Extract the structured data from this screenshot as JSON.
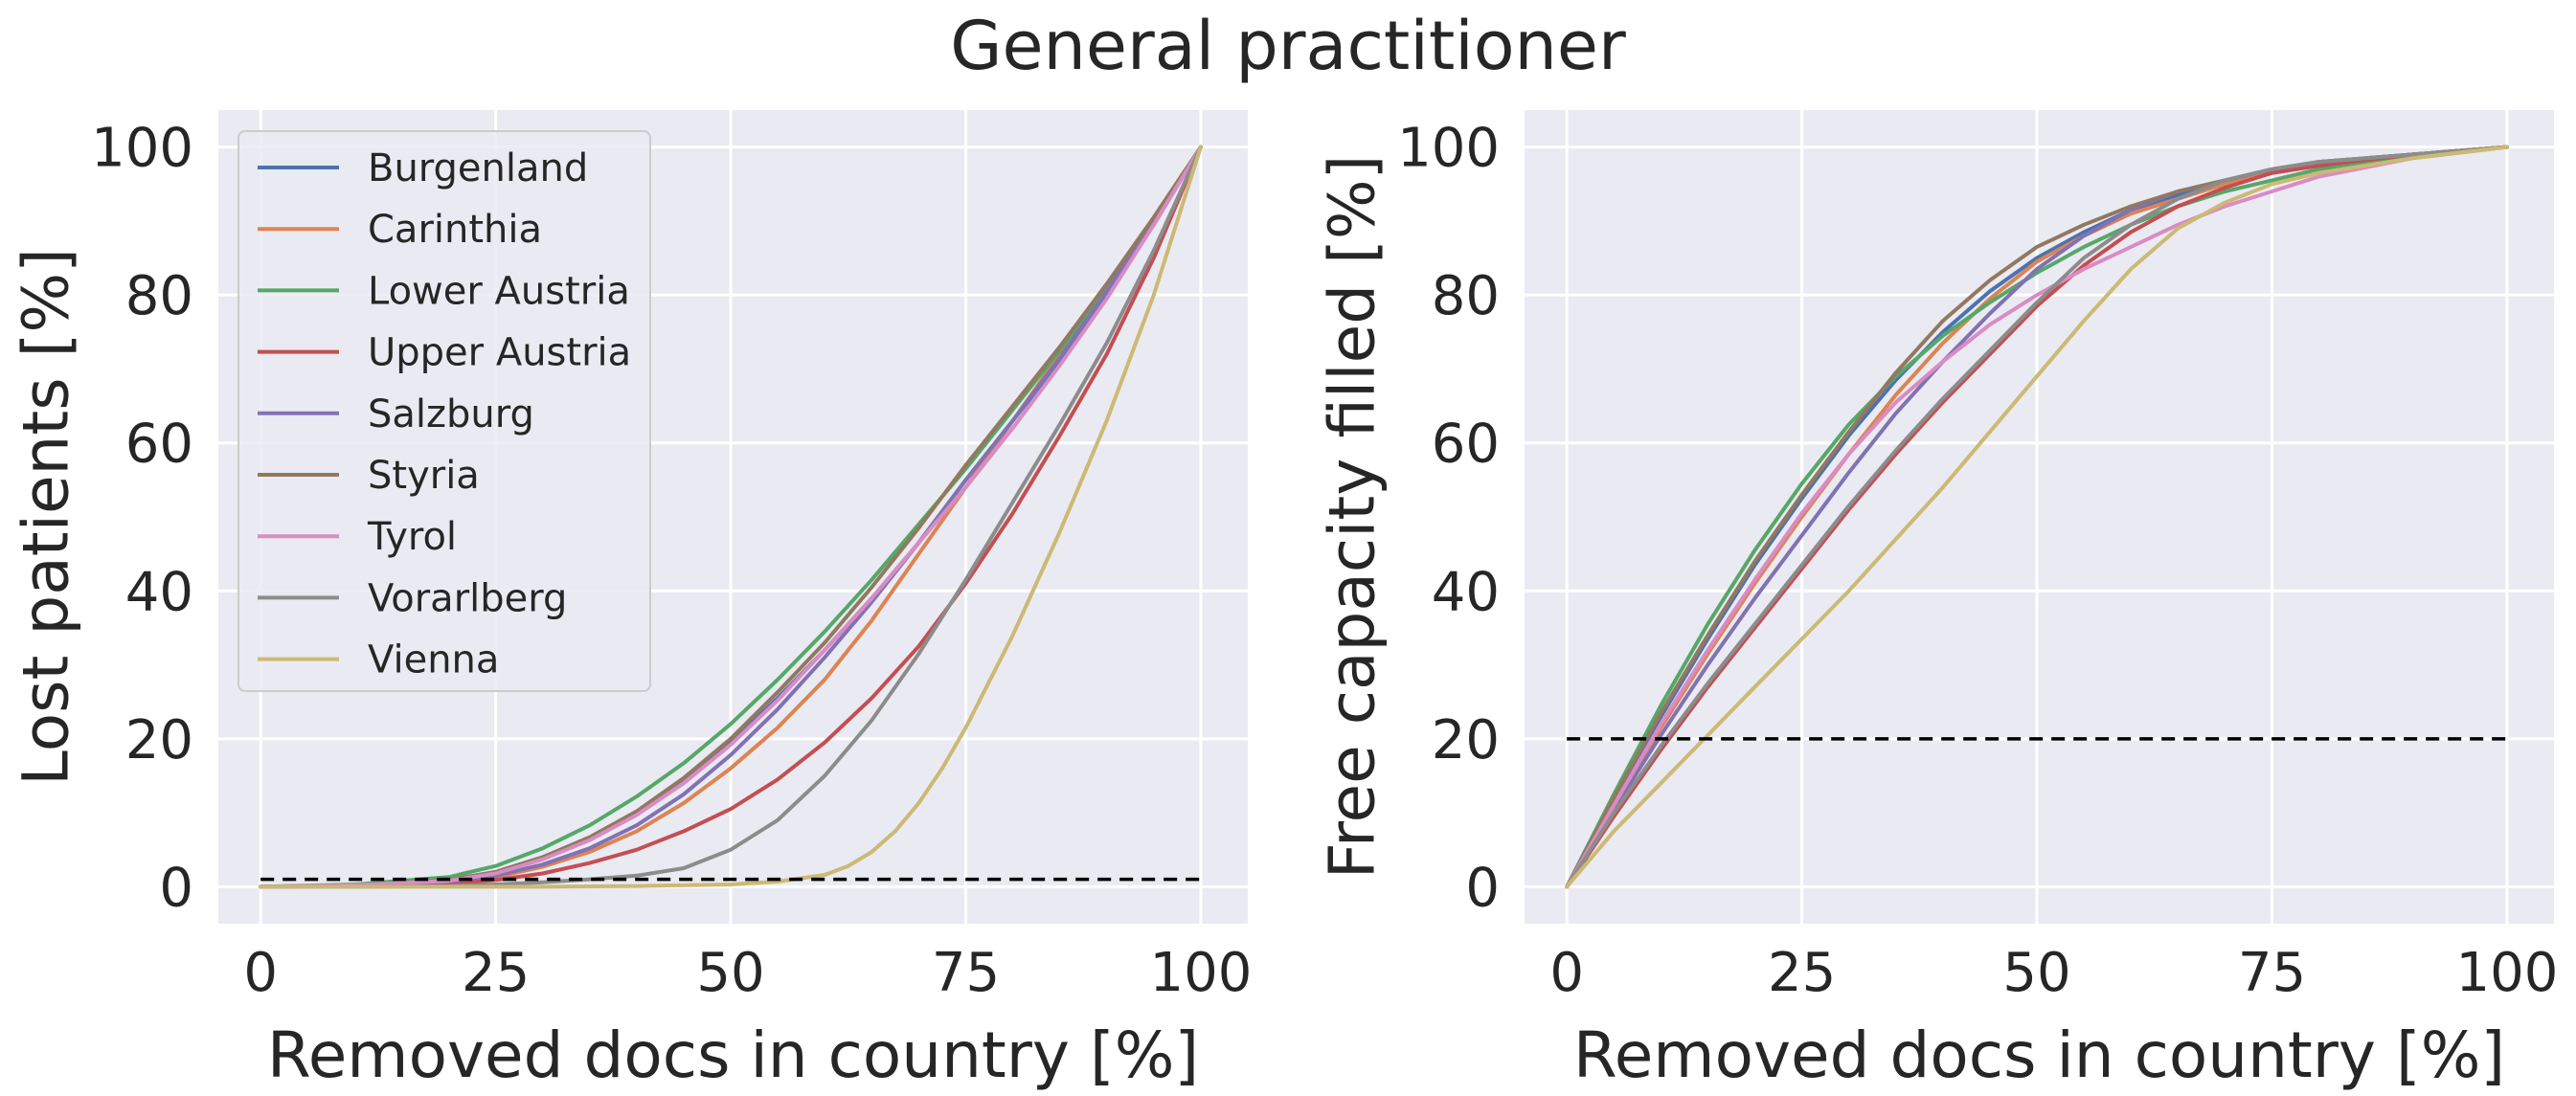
{
  "figure": {
    "title": "General practitioner"
  },
  "chart_data": [
    {
      "type": "line",
      "title": "",
      "xlabel": "Removed docs in country [%]",
      "ylabel": "Lost patients [%]",
      "xlim": [
        -4.5,
        105
      ],
      "ylim": [
        -5,
        105
      ],
      "xticks": [
        0,
        25,
        50,
        75,
        100
      ],
      "yticks": [
        0,
        20,
        40,
        60,
        80,
        100
      ],
      "grid": true,
      "legend_position": "upper-left",
      "threshold": {
        "y": 1,
        "style": "dashed",
        "color": "#000000"
      },
      "series": [
        {
          "name": "Burgenland",
          "color": "#4c72b0",
          "x": [
            0,
            10,
            20,
            25,
            30,
            35,
            40,
            45,
            50,
            55,
            60,
            65,
            70,
            75,
            80,
            85,
            90,
            95,
            100
          ],
          "y": [
            0,
            0.2,
            0.9,
            2,
            4,
            6.5,
            10,
            14.5,
            19.5,
            25.5,
            32,
            39,
            46.5,
            55,
            63,
            71,
            80,
            89.5,
            100
          ]
        },
        {
          "name": "Carinthia",
          "color": "#dd8452",
          "x": [
            0,
            10,
            20,
            25,
            30,
            35,
            40,
            45,
            50,
            55,
            60,
            65,
            70,
            75,
            80,
            85,
            90,
            95,
            100
          ],
          "y": [
            0,
            0.1,
            0.6,
            1.3,
            2.7,
            4.7,
            7.5,
            11.3,
            16,
            21.5,
            28,
            36,
            45,
            54,
            63,
            72,
            81,
            90,
            100
          ]
        },
        {
          "name": "Lower Austria",
          "color": "#55a868",
          "x": [
            0,
            10,
            20,
            25,
            30,
            35,
            40,
            45,
            50,
            55,
            60,
            65,
            70,
            75,
            80,
            85,
            90,
            95,
            100
          ],
          "y": [
            0,
            0.3,
            1.3,
            2.8,
            5.2,
            8.3,
            12.2,
            16.7,
            22,
            28,
            34.5,
            41.5,
            49,
            56.5,
            64.5,
            72.5,
            81,
            90,
            100
          ]
        },
        {
          "name": "Upper Austria",
          "color": "#c44e52",
          "x": [
            0,
            10,
            20,
            25,
            30,
            35,
            40,
            45,
            50,
            55,
            60,
            65,
            70,
            75,
            80,
            85,
            90,
            95,
            100
          ],
          "y": [
            0,
            0.1,
            0.4,
            0.9,
            1.8,
            3.2,
            5,
            7.5,
            10.5,
            14.5,
            19.5,
            25.5,
            32.5,
            41,
            50.5,
            61,
            72,
            85,
            100
          ]
        },
        {
          "name": "Salzburg",
          "color": "#8172b3",
          "x": [
            0,
            10,
            20,
            25,
            30,
            35,
            40,
            45,
            50,
            55,
            60,
            65,
            70,
            75,
            80,
            85,
            90,
            95,
            100
          ],
          "y": [
            0,
            0.1,
            0.7,
            1.5,
            3,
            5.2,
            8.3,
            12.5,
            17.8,
            24,
            31,
            38.5,
            46.5,
            55,
            63,
            71.5,
            80.5,
            90,
            100
          ]
        },
        {
          "name": "Styria",
          "color": "#937860",
          "x": [
            0,
            10,
            20,
            25,
            30,
            35,
            40,
            45,
            50,
            55,
            60,
            65,
            70,
            75,
            80,
            85,
            90,
            95,
            100
          ],
          "y": [
            0,
            0.2,
            0.9,
            2,
            4,
            6.7,
            10.2,
            14.7,
            20,
            26.3,
            33,
            40.5,
            48.5,
            57,
            65,
            73,
            81.5,
            90.5,
            100
          ]
        },
        {
          "name": "Tyrol",
          "color": "#da8bc3",
          "x": [
            0,
            10,
            20,
            25,
            30,
            35,
            40,
            45,
            50,
            55,
            60,
            65,
            70,
            75,
            80,
            85,
            90,
            95,
            100
          ],
          "y": [
            0,
            0.2,
            0.8,
            1.8,
            3.7,
            6.3,
            9.7,
            14,
            19.2,
            25.2,
            32,
            39,
            46.5,
            54,
            62,
            70.5,
            79.5,
            89.5,
            100
          ]
        },
        {
          "name": "Vorarlberg",
          "color": "#8c8c8c",
          "x": [
            0,
            10,
            20,
            25,
            30,
            35,
            40,
            45,
            50,
            55,
            60,
            65,
            70,
            75,
            80,
            85,
            90,
            95,
            100
          ],
          "y": [
            0,
            0,
            0.1,
            0.3,
            0.6,
            1,
            1.5,
            2.5,
            5,
            9,
            15,
            22.5,
            31.5,
            41.5,
            52,
            62.5,
            73.5,
            86,
            100
          ]
        },
        {
          "name": "Vienna",
          "color": "#ccb974",
          "x": [
            0,
            10,
            20,
            30,
            40,
            50,
            55,
            60,
            62.5,
            65,
            67.5,
            70,
            72.5,
            75,
            80,
            85,
            90,
            95,
            100
          ],
          "y": [
            0,
            0,
            0,
            0,
            0.1,
            0.3,
            0.7,
            1.6,
            2.8,
            4.7,
            7.5,
            11.3,
            16,
            21.5,
            34,
            48,
            63,
            80,
            100
          ]
        }
      ]
    },
    {
      "type": "line",
      "title": "",
      "xlabel": "Removed docs in country [%]",
      "ylabel": "Free capacity filled [%]",
      "xlim": [
        -4.5,
        105
      ],
      "ylim": [
        -5,
        105
      ],
      "xticks": [
        0,
        25,
        50,
        75,
        100
      ],
      "yticks": [
        0,
        20,
        40,
        60,
        80,
        100
      ],
      "grid": true,
      "threshold": {
        "y": 20,
        "style": "dashed",
        "color": "#000000"
      },
      "series": [
        {
          "name": "Burgenland",
          "color": "#4c72b0",
          "x": [
            0,
            5,
            10,
            15,
            20,
            25,
            30,
            35,
            40,
            45,
            50,
            55,
            60,
            65,
            70,
            75,
            80,
            90,
            100
          ],
          "y": [
            0,
            12,
            23,
            33.5,
            43.5,
            52.5,
            61,
            68.5,
            75,
            80.5,
            85,
            88.5,
            91.5,
            93.5,
            95,
            96.5,
            97.5,
            99,
            100
          ]
        },
        {
          "name": "Carinthia",
          "color": "#dd8452",
          "x": [
            0,
            5,
            10,
            15,
            20,
            25,
            30,
            35,
            40,
            45,
            50,
            55,
            60,
            65,
            70,
            75,
            80,
            90,
            100
          ],
          "y": [
            0,
            11,
            21.5,
            31.5,
            41,
            50,
            58.5,
            66.5,
            73.5,
            79.5,
            84.5,
            88,
            91,
            93,
            95,
            96.5,
            97.5,
            99,
            100
          ]
        },
        {
          "name": "Lower Austria",
          "color": "#55a868",
          "x": [
            0,
            5,
            10,
            15,
            20,
            25,
            30,
            35,
            40,
            45,
            50,
            55,
            60,
            65,
            70,
            75,
            80,
            90,
            100
          ],
          "y": [
            0,
            12.5,
            24.5,
            35.5,
            45.5,
            54.5,
            62.5,
            69,
            74.5,
            79,
            83,
            86.5,
            89.5,
            92,
            94,
            95.5,
            97,
            99,
            100
          ]
        },
        {
          "name": "Upper Austria",
          "color": "#c44e52",
          "x": [
            0,
            5,
            10,
            15,
            20,
            25,
            30,
            35,
            40,
            45,
            50,
            55,
            60,
            65,
            70,
            75,
            80,
            90,
            100
          ],
          "y": [
            0,
            9.5,
            18.5,
            27,
            35,
            43,
            51,
            58.5,
            65.5,
            72,
            78.5,
            84,
            88.5,
            92,
            94.5,
            96.5,
            97.5,
            99,
            100
          ]
        },
        {
          "name": "Salzburg",
          "color": "#8172b3",
          "x": [
            0,
            5,
            10,
            15,
            20,
            25,
            30,
            35,
            40,
            45,
            50,
            55,
            60,
            65,
            70,
            75,
            80,
            90,
            100
          ],
          "y": [
            0,
            10.5,
            20.5,
            30,
            39,
            47.5,
            56,
            64,
            71,
            77.5,
            83.5,
            88,
            91.5,
            94,
            95.5,
            97,
            98,
            99,
            100
          ]
        },
        {
          "name": "Styria",
          "color": "#937860",
          "x": [
            0,
            5,
            10,
            15,
            20,
            25,
            30,
            35,
            40,
            45,
            50,
            55,
            60,
            65,
            70,
            75,
            80,
            90,
            100
          ],
          "y": [
            0,
            12,
            23.5,
            34,
            44,
            53,
            61.5,
            69.5,
            76.5,
            82,
            86.5,
            89.5,
            92,
            94,
            95.5,
            97,
            98,
            99,
            100
          ]
        },
        {
          "name": "Tyrol",
          "color": "#da8bc3",
          "x": [
            0,
            5,
            10,
            15,
            20,
            25,
            30,
            35,
            40,
            45,
            50,
            55,
            60,
            65,
            70,
            75,
            80,
            90,
            100
          ],
          "y": [
            0,
            11,
            22,
            32,
            41.5,
            50.5,
            58.5,
            65.5,
            71,
            76,
            80,
            83.5,
            86.5,
            89.5,
            92,
            94,
            96,
            98.5,
            100
          ]
        },
        {
          "name": "Vorarlberg",
          "color": "#8c8c8c",
          "x": [
            0,
            5,
            10,
            15,
            20,
            25,
            30,
            35,
            40,
            45,
            50,
            55,
            60,
            65,
            70,
            75,
            80,
            90,
            100
          ],
          "y": [
            0,
            10,
            19,
            27.5,
            35.5,
            43.5,
            51.5,
            59,
            66,
            72.5,
            79,
            85,
            89.5,
            93,
            95.5,
            97,
            98,
            99,
            100
          ]
        },
        {
          "name": "Vienna",
          "color": "#ccb974",
          "x": [
            0,
            5,
            10,
            15,
            20,
            25,
            30,
            35,
            40,
            45,
            50,
            55,
            60,
            65,
            70,
            75,
            80,
            90,
            100
          ],
          "y": [
            0,
            7.5,
            14,
            20.5,
            27,
            33.5,
            40,
            47,
            54,
            61.5,
            69,
            76.5,
            83.5,
            89,
            92.5,
            95,
            96.5,
            98.5,
            100
          ]
        }
      ]
    }
  ]
}
